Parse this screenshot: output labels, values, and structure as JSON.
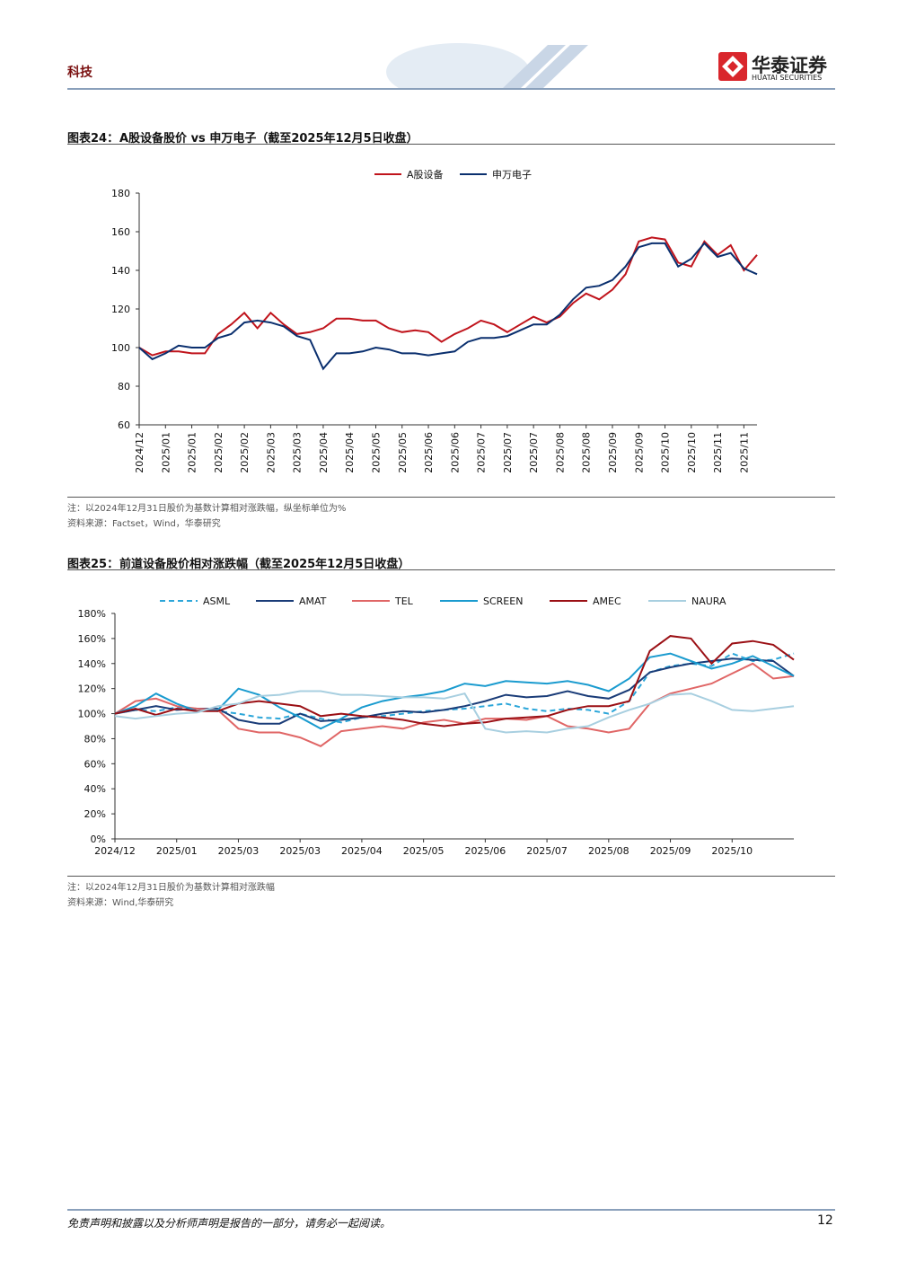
{
  "header": {
    "section": "科技",
    "logo_cn": "华泰证券",
    "logo_en": "HUATAI SECURITIES"
  },
  "chart_data": [
    {
      "type": "line",
      "label": "图表24：",
      "title": "A股设备股价 vs 申万电子（截至2025年12月5日收盘）",
      "categories": [
        "2024/12",
        null,
        "2025/01",
        null,
        "2025/01",
        null,
        "2025/02",
        null,
        "2025/02",
        null,
        "2025/03",
        null,
        "2025/03",
        null,
        "2025/04",
        null,
        "2025/04",
        null,
        "2025/05",
        null,
        "2025/05",
        null,
        "2025/06",
        null,
        "2025/06",
        null,
        "2025/07",
        null,
        "2025/07",
        null,
        "2025/07",
        null,
        "2025/08",
        null,
        "2025/08",
        null,
        "2025/09",
        null,
        "2025/09",
        null,
        "2025/10",
        null,
        "2025/10",
        null,
        "2025/11",
        null,
        "2025/11",
        null
      ],
      "series": [
        {
          "name": "A股设备",
          "color": "#c0141c",
          "values": [
            100,
            96,
            98,
            98,
            97,
            97,
            107,
            112,
            118,
            110,
            118,
            112,
            107,
            108,
            110,
            115,
            115,
            114,
            114,
            110,
            108,
            109,
            108,
            103,
            107,
            110,
            114,
            112,
            108,
            112,
            116,
            113,
            116,
            123,
            128,
            125,
            130,
            138,
            155,
            157,
            156,
            144,
            142,
            155,
            148,
            153,
            140,
            148
          ]
        },
        {
          "name": "申万电子",
          "color": "#0a2f6e",
          "values": [
            100,
            94,
            97,
            101,
            100,
            100,
            105,
            107,
            113,
            114,
            113,
            111,
            106,
            104,
            89,
            97,
            97,
            98,
            100,
            99,
            97,
            97,
            96,
            97,
            98,
            103,
            105,
            105,
            106,
            109,
            112,
            112,
            117,
            125,
            131,
            132,
            135,
            142,
            152,
            154,
            154,
            142,
            146,
            154,
            147,
            149,
            141,
            138
          ]
        }
      ],
      "ylim": [
        60,
        180
      ],
      "yticks": [
        60,
        80,
        100,
        120,
        140,
        160,
        180
      ],
      "notes": [
        "注：以2024年12月31日股价为基数计算相对涨跌幅，纵坐标单位为%",
        "资料来源：Factset，Wind，华泰研究"
      ]
    },
    {
      "type": "line",
      "label": "图表25：",
      "title": "前道设备股价相对涨跌幅（截至2025年12月5日收盘）",
      "categories": [
        "2024/12",
        null,
        null,
        "2025/01",
        null,
        null,
        "2025/03",
        null,
        null,
        "2025/03",
        null,
        null,
        "2025/04",
        null,
        null,
        "2025/05",
        null,
        null,
        "2025/06",
        null,
        null,
        "2025/07",
        null,
        null,
        "2025/08",
        null,
        null,
        "2025/09",
        null,
        null,
        "2025/10",
        null,
        null,
        null
      ],
      "series": [
        {
          "name": "ASML",
          "color": "#2ca6d9",
          "dashed": true,
          "values": [
            100,
            103,
            102,
            105,
            104,
            102,
            100,
            97,
            96,
            100,
            96,
            93,
            97,
            98,
            100,
            102,
            103,
            104,
            106,
            108,
            104,
            102,
            104,
            103,
            100,
            110,
            133,
            138,
            140,
            138,
            148,
            142,
            143,
            148
          ]
        },
        {
          "name": "AMAT",
          "color": "#1a3c78",
          "values": [
            100,
            103,
            106,
            103,
            104,
            104,
            95,
            92,
            92,
            100,
            94,
            95,
            97,
            100,
            102,
            101,
            103,
            106,
            110,
            115,
            113,
            114,
            118,
            114,
            112,
            119,
            133,
            137,
            140,
            142,
            144,
            143,
            142,
            130
          ]
        },
        {
          "name": "TEL",
          "color": "#e06666",
          "values": [
            100,
            110,
            112,
            106,
            104,
            103,
            88,
            85,
            85,
            81,
            74,
            86,
            88,
            90,
            88,
            93,
            95,
            92,
            96,
            96,
            95,
            98,
            90,
            88,
            85,
            88,
            108,
            116,
            120,
            124,
            132,
            140,
            128,
            130
          ]
        },
        {
          "name": "SCREEN",
          "color": "#1a9bcf",
          "values": [
            100,
            106,
            116,
            108,
            102,
            103,
            120,
            115,
            105,
            97,
            88,
            96,
            105,
            110,
            113,
            115,
            118,
            124,
            122,
            126,
            125,
            124,
            126,
            123,
            118,
            128,
            145,
            148,
            142,
            136,
            140,
            146,
            138,
            130
          ]
        },
        {
          "name": "AMEC",
          "color": "#9b1015",
          "values": [
            100,
            104,
            99,
            104,
            102,
            102,
            108,
            110,
            108,
            106,
            98,
            100,
            98,
            97,
            95,
            92,
            90,
            92,
            93,
            96,
            97,
            98,
            103,
            106,
            106,
            110,
            150,
            162,
            160,
            140,
            156,
            158,
            155,
            143
          ]
        },
        {
          "name": "NAURA",
          "color": "#a8cfe0",
          "values": [
            98,
            96,
            98,
            100,
            101,
            106,
            108,
            114,
            115,
            118,
            118,
            115,
            115,
            114,
            113,
            113,
            112,
            116,
            88,
            85,
            86,
            85,
            88,
            90,
            97,
            103,
            108,
            115,
            116,
            110,
            103,
            102,
            104,
            106
          ]
        }
      ],
      "ylim": [
        0,
        180
      ],
      "yticks": [
        {
          "value": 0,
          "label": "0%"
        },
        {
          "value": 20,
          "label": "20%"
        },
        {
          "value": 40,
          "label": "40%"
        },
        {
          "value": 60,
          "label": "60%"
        },
        {
          "value": 80,
          "label": "80%"
        },
        {
          "value": 100,
          "label": "100%"
        },
        {
          "value": 120,
          "label": "120%"
        },
        {
          "value": 140,
          "label": "140%"
        },
        {
          "value": 160,
          "label": "160%"
        },
        {
          "value": 180,
          "label": "180%"
        }
      ],
      "notes": [
        "注：以2024年12月31日股价为基数计算相对涨跌幅",
        "资料来源：Wind,华泰研究"
      ]
    }
  ],
  "footer": {
    "disclaimer": "免责声明和披露以及分析师声明是报告的一部分，请务必一起阅读。",
    "page_number": 12
  }
}
